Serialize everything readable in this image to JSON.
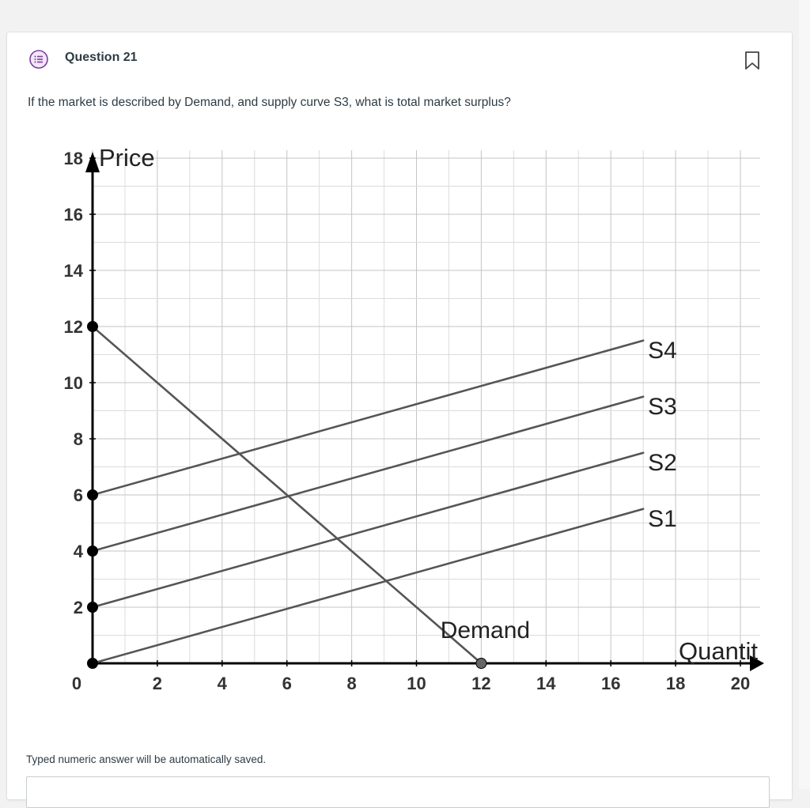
{
  "question": {
    "title": "Question 21",
    "text": "If the market is described by Demand, and supply curve S3, what is total market surplus?",
    "note": "Typed numeric answer will be automatically saved.",
    "answer_value": ""
  },
  "colors": {
    "accent": "#7a3f9d",
    "grid": "#cccccc",
    "line": "#555555",
    "axis": "#000000"
  },
  "icons": {
    "question_icon": "question-list-icon",
    "bookmark_icon": "bookmark-icon"
  },
  "chart_data": {
    "type": "line",
    "ylabel": "Price",
    "xlabel": "Quantit",
    "xlim": [
      0,
      20
    ],
    "ylim": [
      0,
      18
    ],
    "x_ticks": [
      0,
      2,
      4,
      6,
      8,
      10,
      12,
      14,
      16,
      18,
      20
    ],
    "y_ticks": [
      2,
      4,
      6,
      8,
      10,
      12,
      14,
      16,
      18
    ],
    "x_tick_labels": [
      "2",
      "4",
      "6",
      "8",
      "10",
      "12",
      "14",
      "16",
      "18",
      "20"
    ],
    "y_tick_labels": [
      "2",
      "4",
      "6",
      "8",
      "10",
      "12",
      "14",
      "16",
      "18"
    ],
    "origin_label": "0",
    "grid": true,
    "series": [
      {
        "name": "Demand",
        "x": [
          0,
          12
        ],
        "y": [
          12,
          0
        ]
      },
      {
        "name": "S4",
        "x": [
          0,
          17
        ],
        "y": [
          6,
          11.5
        ]
      },
      {
        "name": "S3",
        "x": [
          0,
          17
        ],
        "y": [
          4,
          9.5
        ]
      },
      {
        "name": "S2",
        "x": [
          0,
          17
        ],
        "y": [
          2,
          7.5
        ]
      },
      {
        "name": "S1",
        "x": [
          0,
          17
        ],
        "y": [
          0,
          5.5
        ]
      }
    ],
    "points": [
      {
        "x": 0,
        "y": 12
      },
      {
        "x": 0,
        "y": 6
      },
      {
        "x": 0,
        "y": 4
      },
      {
        "x": 0,
        "y": 2
      },
      {
        "x": 0,
        "y": 0
      },
      {
        "x": 12,
        "y": 0
      }
    ]
  }
}
